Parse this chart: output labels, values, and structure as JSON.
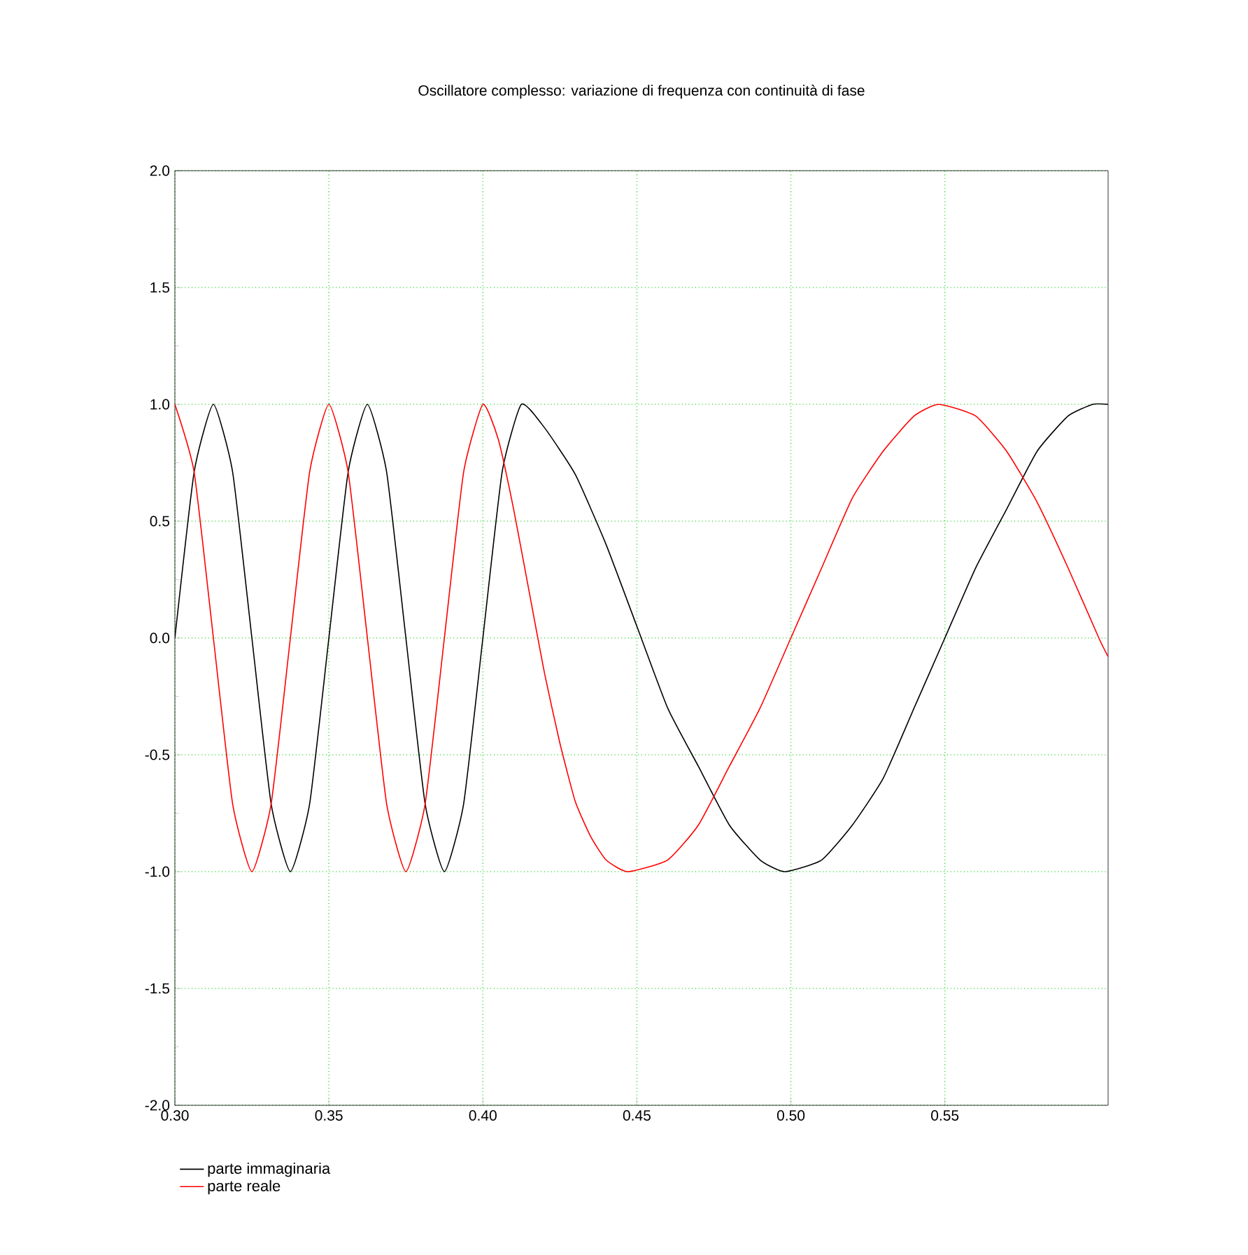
{
  "chart_data": {
    "type": "line",
    "title": "Oscillatore complesso: variazione di frequenza con continuità di fase",
    "xlim": [
      0.3,
      0.603
    ],
    "ylim": [
      -2,
      2
    ],
    "xticks": [
      {
        "value": 0.3,
        "label": "0.30"
      },
      {
        "value": 0.35,
        "label": "0.35"
      },
      {
        "value": 0.4,
        "label": "0.40"
      },
      {
        "value": 0.45,
        "label": "0.45"
      },
      {
        "value": 0.5,
        "label": "0.50"
      },
      {
        "value": 0.55,
        "label": "0.55"
      }
    ],
    "yticks": [
      {
        "value": -2,
        "label": "-2.0"
      },
      {
        "value": -1.5,
        "label": "-1.5"
      },
      {
        "value": -1,
        "label": "-1.0"
      },
      {
        "value": -0.5,
        "label": "-0.5"
      },
      {
        "value": 0,
        "label": "0.0"
      },
      {
        "value": 0.5,
        "label": "0.5"
      },
      {
        "value": 1,
        "label": "1.0"
      },
      {
        "value": 1.5,
        "label": "1.5"
      },
      {
        "value": 2,
        "label": "2.0"
      }
    ],
    "grid": true,
    "legend": "bottom left",
    "marker": "none",
    "line_style": "solid",
    "series": [
      {
        "name": "parte immaginaria",
        "color": "#000000",
        "x": [
          0.3,
          0.30625,
          0.3125,
          0.31875,
          0.325,
          0.33125,
          0.3375,
          0.34375,
          0.35,
          0.35625,
          0.3625,
          0.36875,
          0.375,
          0.38125,
          0.3875,
          0.39375,
          0.4,
          0.40625,
          0.4125,
          0.42,
          0.43,
          0.44,
          0.45,
          0.46,
          0.47,
          0.48,
          0.49,
          0.498,
          0.51,
          0.52,
          0.53,
          0.54,
          0.55,
          0.56,
          0.57,
          0.58,
          0.59,
          0.598,
          0.603
        ],
        "values": [
          0,
          0.71,
          1,
          0.71,
          0,
          -0.71,
          -1,
          -0.71,
          0,
          0.71,
          1,
          0.71,
          0,
          -0.71,
          -1,
          -0.71,
          0,
          0.71,
          1,
          0.9,
          0.7,
          0.4,
          0.05,
          -0.3,
          -0.55,
          -0.8,
          -0.95,
          -1,
          -0.95,
          -0.8,
          -0.6,
          -0.3,
          0,
          0.3,
          0.55,
          0.8,
          0.95,
          1,
          1
        ]
      },
      {
        "name": "parte reale",
        "color": "#ff0000",
        "x": [
          0.3,
          0.30625,
          0.3125,
          0.31875,
          0.325,
          0.33125,
          0.3375,
          0.34375,
          0.35,
          0.35625,
          0.3625,
          0.36875,
          0.375,
          0.38125,
          0.3875,
          0.39375,
          0.4,
          0.405,
          0.41,
          0.415,
          0.42,
          0.425,
          0.43,
          0.435,
          0.44,
          0.447,
          0.46,
          0.47,
          0.48,
          0.49,
          0.5,
          0.51,
          0.52,
          0.53,
          0.54,
          0.548,
          0.56,
          0.57,
          0.58,
          0.59,
          0.6,
          0.603
        ],
        "values": [
          1,
          0.71,
          0,
          -0.71,
          -1,
          -0.71,
          0,
          0.71,
          1,
          0.71,
          0,
          -0.71,
          -1,
          -0.71,
          0,
          0.71,
          1,
          0.85,
          0.55,
          0.2,
          -0.15,
          -0.45,
          -0.7,
          -0.85,
          -0.95,
          -1,
          -0.95,
          -0.8,
          -0.55,
          -0.3,
          0,
          0.3,
          0.6,
          0.8,
          0.95,
          1,
          0.95,
          0.8,
          0.58,
          0.3,
          0,
          -0.08
        ]
      }
    ]
  }
}
